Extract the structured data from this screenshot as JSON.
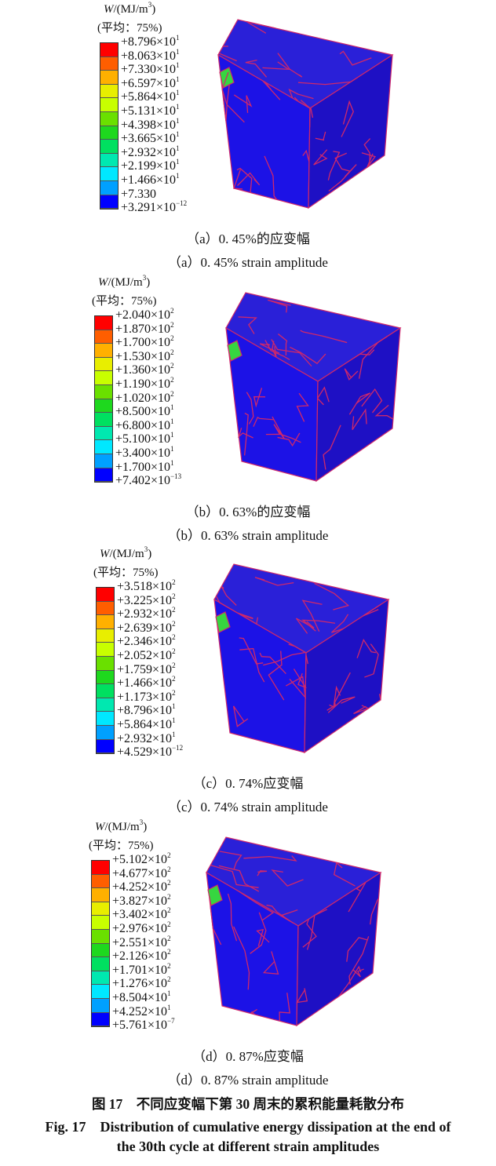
{
  "legend_title": {
    "var": "W",
    "unit": "/(MJ/m",
    "unit_exp": "3",
    "unit_close": ")",
    "avg": "(平均：75%)"
  },
  "legend_colors": [
    "#ff0000",
    "#ff5e00",
    "#ffb000",
    "#e8ee00",
    "#c8ff00",
    "#6ae000",
    "#1ed81e",
    "#00e060",
    "#00e8b0",
    "#00e8ff",
    "#00a0ff",
    "#1a5cff",
    "#0000ff"
  ],
  "cube_colors": {
    "top": "#2a20d8",
    "left": "#1c12e6",
    "right": "#1e10c4",
    "grain_boundary": "#d0286a",
    "hot_spot": "#36d640"
  },
  "panels": [
    {
      "id": "a",
      "labels": [
        [
          "+8.796",
          "1"
        ],
        [
          "+8.063",
          "1"
        ],
        [
          "+7.330",
          "1"
        ],
        [
          "+6.597",
          "1"
        ],
        [
          "+5.864",
          "1"
        ],
        [
          "+5.131",
          "1"
        ],
        [
          "+4.398",
          "1"
        ],
        [
          "+3.665",
          "1"
        ],
        [
          "+2.932",
          "1"
        ],
        [
          "+2.199",
          "1"
        ],
        [
          "+1.466",
          "1"
        ],
        [
          "+7.330",
          ""
        ],
        [
          "+3.291",
          "−12"
        ]
      ],
      "caption_cn": "（a）0. 45%的应变幅",
      "caption_en": "（a）0. 45% strain amplitude"
    },
    {
      "id": "b",
      "labels": [
        [
          "+2.040",
          "2"
        ],
        [
          "+1.870",
          "2"
        ],
        [
          "+1.700",
          "2"
        ],
        [
          "+1.530",
          "2"
        ],
        [
          "+1.360",
          "2"
        ],
        [
          "+1.190",
          "2"
        ],
        [
          "+1.020",
          "2"
        ],
        [
          "+8.500",
          "1"
        ],
        [
          "+6.800",
          "1"
        ],
        [
          "+5.100",
          "1"
        ],
        [
          "+3.400",
          "1"
        ],
        [
          "+1.700",
          "1"
        ],
        [
          "+7.402",
          "−13"
        ]
      ],
      "caption_cn": "（b）0. 63%的应变幅",
      "caption_en": "（b）0. 63% strain amplitude"
    },
    {
      "id": "c",
      "labels": [
        [
          "+3.518",
          "2"
        ],
        [
          "+3.225",
          "2"
        ],
        [
          "+2.932",
          "2"
        ],
        [
          "+2.639",
          "2"
        ],
        [
          "+2.346",
          "2"
        ],
        [
          "+2.052",
          "2"
        ],
        [
          "+1.759",
          "2"
        ],
        [
          "+1.466",
          "2"
        ],
        [
          "+1.173",
          "2"
        ],
        [
          "+8.796",
          "1"
        ],
        [
          "+5.864",
          "1"
        ],
        [
          "+2.932",
          "1"
        ],
        [
          "+4.529",
          "−12"
        ]
      ],
      "caption_cn": "（c）0. 74%应变幅",
      "caption_en": "（c）0. 74% strain amplitude"
    },
    {
      "id": "d",
      "labels": [
        [
          "+5.102",
          "2"
        ],
        [
          "+4.677",
          "2"
        ],
        [
          "+4.252",
          "2"
        ],
        [
          "+3.827",
          "2"
        ],
        [
          "+3.402",
          "2"
        ],
        [
          "+2.976",
          "2"
        ],
        [
          "+2.551",
          "2"
        ],
        [
          "+2.126",
          "2"
        ],
        [
          "+1.701",
          "2"
        ],
        [
          "+1.276",
          "2"
        ],
        [
          "+8.504",
          "1"
        ],
        [
          "+4.252",
          "1"
        ],
        [
          "+5.761",
          "−7"
        ]
      ],
      "caption_cn": "（d）0. 87%应变幅",
      "caption_en": "（d）0. 87% strain amplitude"
    }
  ],
  "figure": {
    "title_cn": "图 17　不同应变幅下第 30 周末的累积能量耗散分布",
    "title_en_1": "Fig. 17　Distribution of cumulative energy dissipation at the end of",
    "title_en_2": "the 30th cycle at different strain amplitudes"
  }
}
